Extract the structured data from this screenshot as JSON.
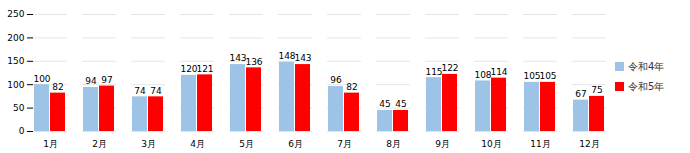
{
  "chart_data": {
    "type": "bar",
    "categories": [
      "1月",
      "2月",
      "3月",
      "4月",
      "5月",
      "6月",
      "7月",
      "8月",
      "9月",
      "10月",
      "11月",
      "12月"
    ],
    "series": [
      {
        "name": "令和4年",
        "color": "#9dc3e6",
        "values": [
          100,
          94,
          74,
          120,
          143,
          148,
          96,
          45,
          115,
          108,
          105,
          67
        ]
      },
      {
        "name": "令和5年",
        "color": "#ff0000",
        "values": [
          82,
          97,
          74,
          121,
          136,
          143,
          82,
          45,
          122,
          114,
          105,
          75
        ]
      }
    ],
    "ylim": [
      0,
      250
    ],
    "yticks": [
      0,
      50,
      100,
      150,
      200,
      250
    ],
    "grid": true,
    "legend": "right",
    "data_labels": true
  }
}
